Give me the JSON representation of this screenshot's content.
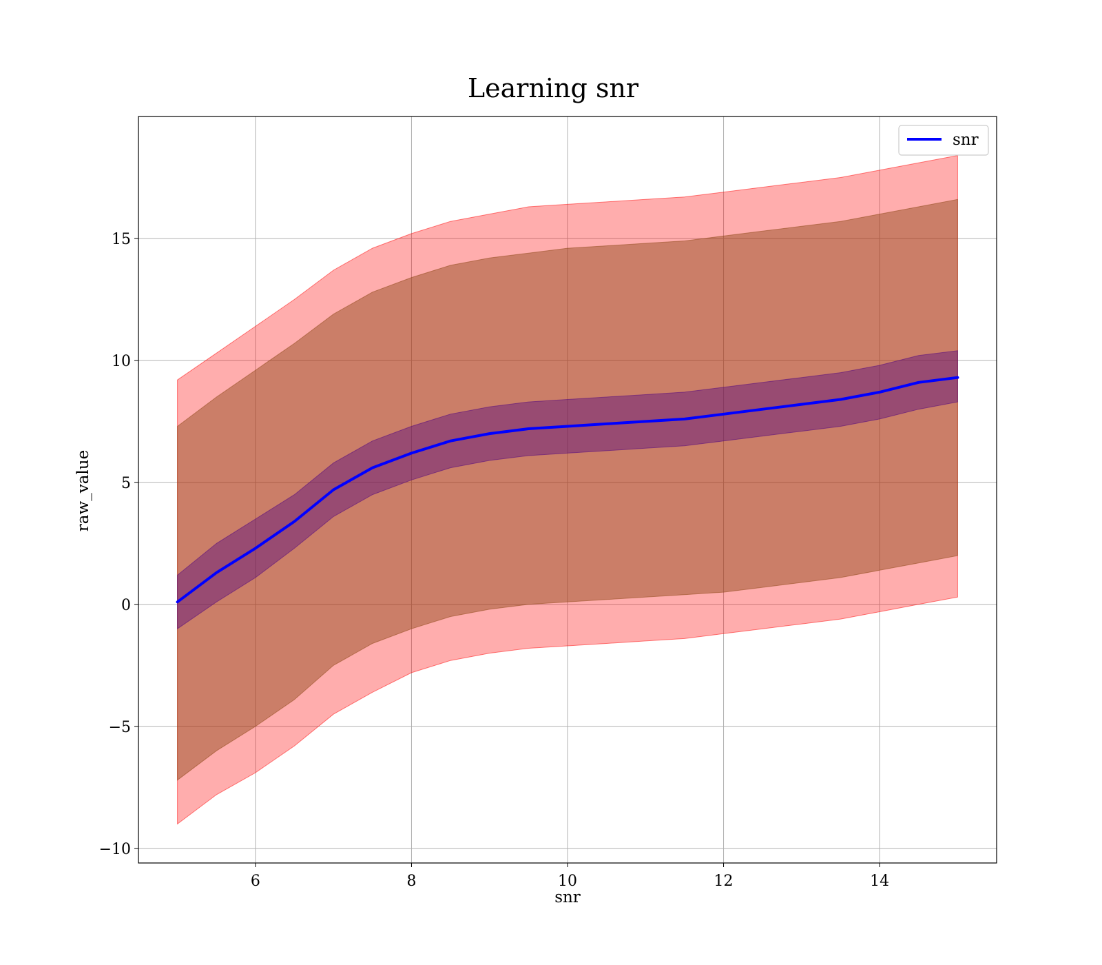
{
  "chart_data": {
    "type": "line",
    "title": "Learning snr",
    "xlabel": "snr",
    "ylabel": "raw_value",
    "xlim": [
      4.5,
      15.5
    ],
    "ylim": [
      -10.6,
      20.0
    ],
    "xticks": [
      6,
      8,
      10,
      12,
      14
    ],
    "yticks": [
      -10,
      -5,
      0,
      5,
      10,
      15
    ],
    "ytick_labels": [
      "−10",
      "−5",
      "0",
      "5",
      "10",
      "15"
    ],
    "grid": true,
    "legend_position": "top-right",
    "colors": {
      "line": "#0000ff",
      "outer_band": "#ff0000",
      "middle_band": "#8b4513",
      "inner_band": "#4b0082",
      "grid": "#b0b0b0"
    },
    "series": [
      {
        "name": "snr",
        "x": [
          5.0,
          5.5,
          6.0,
          6.5,
          7.0,
          7.5,
          8.0,
          8.5,
          9.0,
          9.5,
          10.0,
          10.5,
          11.0,
          11.5,
          12.0,
          12.5,
          13.0,
          13.5,
          14.0,
          14.5,
          15.0
        ],
        "y": [
          0.1,
          1.3,
          2.3,
          3.4,
          4.7,
          5.6,
          6.2,
          6.7,
          7.0,
          7.2,
          7.3,
          7.4,
          7.5,
          7.6,
          7.8,
          8.0,
          8.2,
          8.4,
          8.7,
          9.1,
          9.3
        ]
      }
    ],
    "bands": [
      {
        "x": [
          5.0,
          5.5,
          6.0,
          6.5,
          7.0,
          7.5,
          8.0,
          8.5,
          9.0,
          9.5,
          10.0,
          10.5,
          11.0,
          11.5,
          12.0,
          12.5,
          13.0,
          13.5,
          14.0,
          14.5,
          15.0
        ],
        "upper": [
          9.2,
          10.3,
          11.4,
          12.5,
          13.7,
          14.6,
          15.2,
          15.7,
          16.0,
          16.3,
          16.4,
          16.5,
          16.6,
          16.7,
          16.9,
          17.1,
          17.3,
          17.5,
          17.8,
          18.1,
          18.4
        ],
        "lower": [
          -9.0,
          -7.8,
          -6.9,
          -5.8,
          -4.5,
          -3.6,
          -2.8,
          -2.3,
          -2.0,
          -1.8,
          -1.7,
          -1.6,
          -1.5,
          -1.4,
          -1.2,
          -1.0,
          -0.8,
          -0.6,
          -0.3,
          0.0,
          0.3
        ]
      },
      {
        "x": [
          5.0,
          5.5,
          6.0,
          6.5,
          7.0,
          7.5,
          8.0,
          8.5,
          9.0,
          9.5,
          10.0,
          10.5,
          11.0,
          11.5,
          12.0,
          12.5,
          13.0,
          13.5,
          14.0,
          14.5,
          15.0
        ],
        "upper": [
          7.3,
          8.5,
          9.6,
          10.7,
          11.9,
          12.8,
          13.4,
          13.9,
          14.2,
          14.4,
          14.6,
          14.7,
          14.8,
          14.9,
          15.1,
          15.3,
          15.5,
          15.7,
          16.0,
          16.3,
          16.6
        ],
        "lower": [
          -7.2,
          -6.0,
          -5.0,
          -3.9,
          -2.5,
          -1.6,
          -1.0,
          -0.5,
          -0.2,
          0.0,
          0.1,
          0.2,
          0.3,
          0.4,
          0.5,
          0.7,
          0.9,
          1.1,
          1.4,
          1.7,
          2.0
        ]
      },
      {
        "x": [
          5.0,
          5.5,
          6.0,
          6.5,
          7.0,
          7.5,
          8.0,
          8.5,
          9.0,
          9.5,
          10.0,
          10.5,
          11.0,
          11.5,
          12.0,
          12.5,
          13.0,
          13.5,
          14.0,
          14.5,
          15.0
        ],
        "upper": [
          1.2,
          2.5,
          3.5,
          4.5,
          5.8,
          6.7,
          7.3,
          7.8,
          8.1,
          8.3,
          8.4,
          8.5,
          8.6,
          8.7,
          8.9,
          9.1,
          9.3,
          9.5,
          9.8,
          10.2,
          10.4
        ],
        "lower": [
          -1.0,
          0.1,
          1.1,
          2.3,
          3.6,
          4.5,
          5.1,
          5.6,
          5.9,
          6.1,
          6.2,
          6.3,
          6.4,
          6.5,
          6.7,
          6.9,
          7.1,
          7.3,
          7.6,
          8.0,
          8.3
        ]
      }
    ]
  }
}
